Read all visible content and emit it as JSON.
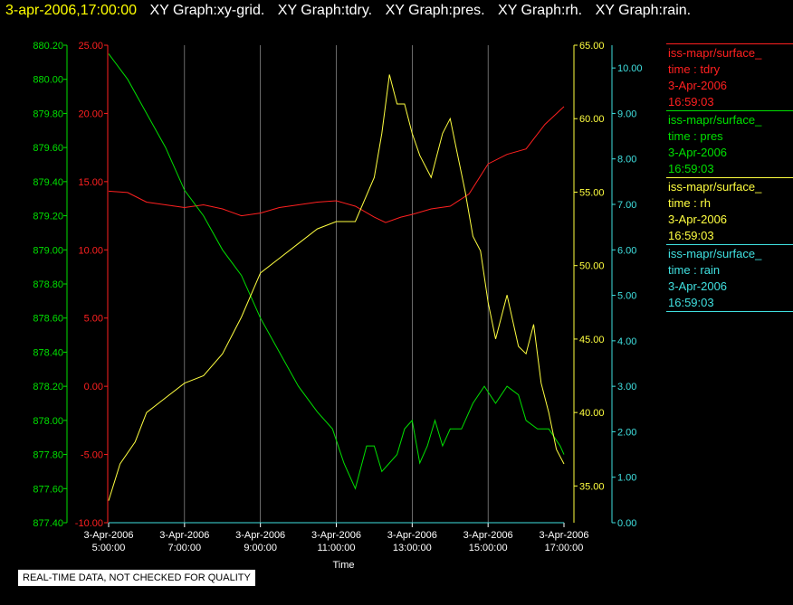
{
  "header": {
    "timestamp": "3-apr-2006,17:00:00",
    "graph_titles": [
      "XY Graph:xy-grid.",
      "XY Graph:tdry.",
      "XY Graph:pres.",
      "XY Graph:rh.",
      "XY Graph:rain."
    ]
  },
  "legend": [
    {
      "name": "iss-mapr/surface_",
      "field": "time : tdry",
      "date": "3-Apr-2006",
      "time": "16:59:03",
      "color": "#ff2020"
    },
    {
      "name": "iss-mapr/surface_",
      "field": "time : pres",
      "date": "3-Apr-2006",
      "time": "16:59:03",
      "color": "#00e000"
    },
    {
      "name": "iss-mapr/surface_",
      "field": "time : rh",
      "date": "3-Apr-2006",
      "time": "16:59:03",
      "color": "#ffff40"
    },
    {
      "name": "iss-mapr/surface_",
      "field": "time : rain",
      "date": "3-Apr-2006",
      "time": "16:59:03",
      "color": "#40e0e0"
    }
  ],
  "disclaimer": "REAL-TIME DATA, NOT CHECKED FOR QUALITY",
  "chart_data": {
    "type": "line",
    "xlabel": "Time",
    "x_ticks": [
      [
        "3-Apr-2006",
        "5:00:00"
      ],
      [
        "3-Apr-2006",
        "7:00:00"
      ],
      [
        "3-Apr-2006",
        "9:00:00"
      ],
      [
        "3-Apr-2006",
        "11:00:00"
      ],
      [
        "3-Apr-2006",
        "13:00:00"
      ],
      [
        "3-Apr-2006",
        "15:00:00"
      ],
      [
        "3-Apr-2006",
        "17:00:00"
      ]
    ],
    "x_hours_range": [
      5,
      17
    ],
    "grid": "vertical",
    "axes": {
      "pres": {
        "color": "#00e000",
        "range": [
          877.4,
          880.2
        ],
        "ticks": [
          "877.40",
          "877.60",
          "877.80",
          "878.00",
          "878.20",
          "878.40",
          "878.60",
          "878.80",
          "879.00",
          "879.20",
          "879.40",
          "879.60",
          "879.80",
          "880.00",
          "880.20"
        ]
      },
      "tdry": {
        "color": "#ff2020",
        "range": [
          -10,
          25
        ],
        "ticks": [
          "-10.00",
          "-5.00",
          "0.00",
          "5.00",
          "10.00",
          "15.00",
          "20.00",
          "25.00"
        ]
      },
      "rh": {
        "color": "#ffff40",
        "range": [
          32.5,
          65
        ],
        "ticks": [
          "35.00",
          "40.00",
          "45.00",
          "50.00",
          "55.00",
          "60.00",
          "65.00"
        ]
      },
      "rain": {
        "color": "#40e0e0",
        "range": [
          0,
          10.5
        ],
        "ticks": [
          "0.00",
          "1.00",
          "2.00",
          "3.00",
          "4.00",
          "5.00",
          "6.00",
          "7.00",
          "8.00",
          "9.00",
          "10.00"
        ]
      }
    },
    "series": [
      {
        "name": "time : tdry",
        "axis": "tdry",
        "x": [
          5,
          5.5,
          6,
          6.5,
          7,
          7.5,
          8,
          8.5,
          9,
          9.5,
          10,
          10.5,
          11,
          11.5,
          12,
          12.3,
          12.7,
          13,
          13.5,
          14,
          14.5,
          15,
          15.5,
          16,
          16.5,
          17
        ],
        "y": [
          14.3,
          14.2,
          13.5,
          13.3,
          13.1,
          13.3,
          13.0,
          12.5,
          12.7,
          13.1,
          13.3,
          13.5,
          13.6,
          13.2,
          12.4,
          12.0,
          12.4,
          12.6,
          13.0,
          13.2,
          14.1,
          16.3,
          17.0,
          17.4,
          19.2,
          20.5
        ]
      },
      {
        "name": "time : pres",
        "axis": "pres",
        "x": [
          5,
          5.5,
          6,
          6.5,
          7,
          7.5,
          8,
          8.5,
          9,
          9.5,
          10,
          10.5,
          10.9,
          11.2,
          11.5,
          11.8,
          12.0,
          12.2,
          12.4,
          12.6,
          12.8,
          13.0,
          13.2,
          13.4,
          13.6,
          13.8,
          14.0,
          14.3,
          14.6,
          14.9,
          15.2,
          15.5,
          15.8,
          16.0,
          16.3,
          16.6,
          16.9,
          17
        ],
        "y": [
          880.15,
          880.0,
          879.8,
          879.6,
          879.35,
          879.2,
          879.0,
          878.85,
          878.6,
          878.4,
          878.2,
          878.05,
          877.95,
          877.75,
          877.6,
          877.85,
          877.85,
          877.7,
          877.75,
          877.8,
          877.95,
          878.0,
          877.75,
          877.85,
          878.0,
          877.85,
          877.95,
          877.95,
          878.1,
          878.2,
          878.1,
          878.2,
          878.15,
          878.0,
          877.95,
          877.95,
          877.85,
          877.8
        ]
      },
      {
        "name": "time : rh",
        "axis": "rh",
        "x": [
          5,
          5.3,
          5.7,
          6,
          6.5,
          7,
          7.5,
          8,
          8.5,
          9,
          9.5,
          10,
          10.5,
          11,
          11.5,
          12,
          12.2,
          12.4,
          12.6,
          12.8,
          13,
          13.2,
          13.5,
          13.8,
          14,
          14.2,
          14.4,
          14.6,
          14.8,
          15,
          15.2,
          15.5,
          15.8,
          16,
          16.2,
          16.4,
          16.6,
          16.8,
          17
        ],
        "y": [
          34,
          36.5,
          38,
          40,
          41,
          42,
          42.5,
          44,
          46.5,
          49.5,
          50.5,
          51.5,
          52.5,
          53,
          53,
          56,
          59,
          63,
          61,
          61,
          59,
          57.5,
          56,
          59,
          60,
          57.5,
          55,
          52,
          51,
          47.5,
          45,
          48,
          44.5,
          44,
          46,
          42,
          40,
          37.5,
          36.5
        ]
      },
      {
        "name": "time : rain",
        "axis": "rain",
        "x": [
          5,
          17
        ],
        "y": [
          0,
          0
        ]
      }
    ]
  }
}
